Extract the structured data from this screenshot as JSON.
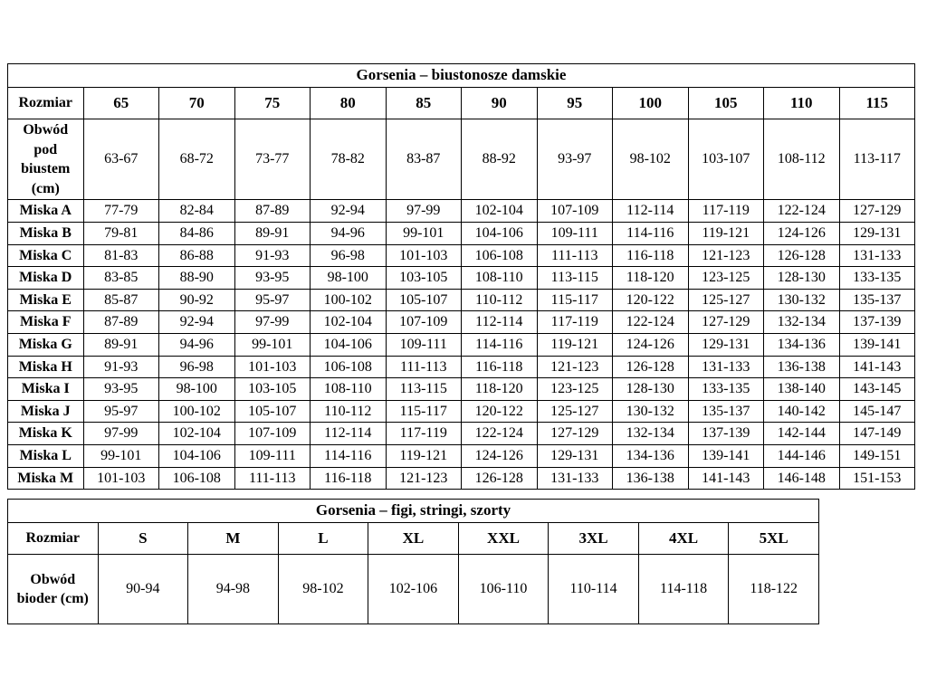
{
  "page_background": "#ffffff",
  "border_color": "#000000",
  "chart_data": [
    {
      "type": "table",
      "title": "Gorsenia – biustonosze damskie",
      "columns": [
        "Rozmiar",
        "65",
        "70",
        "75",
        "80",
        "85",
        "90",
        "95",
        "100",
        "105",
        "110",
        "115"
      ],
      "rows": [
        [
          "Obwód pod biustem (cm)",
          "63-67",
          "68-72",
          "73-77",
          "78-82",
          "83-87",
          "88-92",
          "93-97",
          "98-102",
          "103-107",
          "108-112",
          "113-117"
        ],
        [
          "Miska A",
          "77-79",
          "82-84",
          "87-89",
          "92-94",
          "97-99",
          "102-104",
          "107-109",
          "112-114",
          "117-119",
          "122-124",
          "127-129"
        ],
        [
          "Miska B",
          "79-81",
          "84-86",
          "89-91",
          "94-96",
          "99-101",
          "104-106",
          "109-111",
          "114-116",
          "119-121",
          "124-126",
          "129-131"
        ],
        [
          "Miska C",
          "81-83",
          "86-88",
          "91-93",
          "96-98",
          "101-103",
          "106-108",
          "111-113",
          "116-118",
          "121-123",
          "126-128",
          "131-133"
        ],
        [
          "Miska D",
          "83-85",
          "88-90",
          "93-95",
          "98-100",
          "103-105",
          "108-110",
          "113-115",
          "118-120",
          "123-125",
          "128-130",
          "133-135"
        ],
        [
          "Miska E",
          "85-87",
          "90-92",
          "95-97",
          "100-102",
          "105-107",
          "110-112",
          "115-117",
          "120-122",
          "125-127",
          "130-132",
          "135-137"
        ],
        [
          "Miska F",
          "87-89",
          "92-94",
          "97-99",
          "102-104",
          "107-109",
          "112-114",
          "117-119",
          "122-124",
          "127-129",
          "132-134",
          "137-139"
        ],
        [
          "Miska G",
          "89-91",
          "94-96",
          "99-101",
          "104-106",
          "109-111",
          "114-116",
          "119-121",
          "124-126",
          "129-131",
          "134-136",
          "139-141"
        ],
        [
          "Miska H",
          "91-93",
          "96-98",
          "101-103",
          "106-108",
          "111-113",
          "116-118",
          "121-123",
          "126-128",
          "131-133",
          "136-138",
          "141-143"
        ],
        [
          "Miska I",
          "93-95",
          "98-100",
          "103-105",
          "108-110",
          "113-115",
          "118-120",
          "123-125",
          "128-130",
          "133-135",
          "138-140",
          "143-145"
        ],
        [
          "Miska J",
          "95-97",
          "100-102",
          "105-107",
          "110-112",
          "115-117",
          "120-122",
          "125-127",
          "130-132",
          "135-137",
          "140-142",
          "145-147"
        ],
        [
          "Miska K",
          "97-99",
          "102-104",
          "107-109",
          "112-114",
          "117-119",
          "122-124",
          "127-129",
          "132-134",
          "137-139",
          "142-144",
          "147-149"
        ],
        [
          "Miska L",
          "99-101",
          "104-106",
          "109-111",
          "114-116",
          "119-121",
          "124-126",
          "129-131",
          "134-136",
          "139-141",
          "144-146",
          "149-151"
        ],
        [
          "Miska M",
          "101-103",
          "106-108",
          "111-113",
          "116-118",
          "121-123",
          "126-128",
          "131-133",
          "136-138",
          "141-143",
          "146-148",
          "151-153"
        ]
      ]
    },
    {
      "type": "table",
      "title": "Gorsenia – figi, stringi, szorty",
      "columns": [
        "Rozmiar",
        "S",
        "M",
        "L",
        "XL",
        "XXL",
        "3XL",
        "4XL",
        "5XL"
      ],
      "rows": [
        [
          "Obwód bioder (cm)",
          "90-94",
          "94-98",
          "98-102",
          "102-106",
          "106-110",
          "110-114",
          "114-118",
          "118-122"
        ]
      ]
    }
  ]
}
